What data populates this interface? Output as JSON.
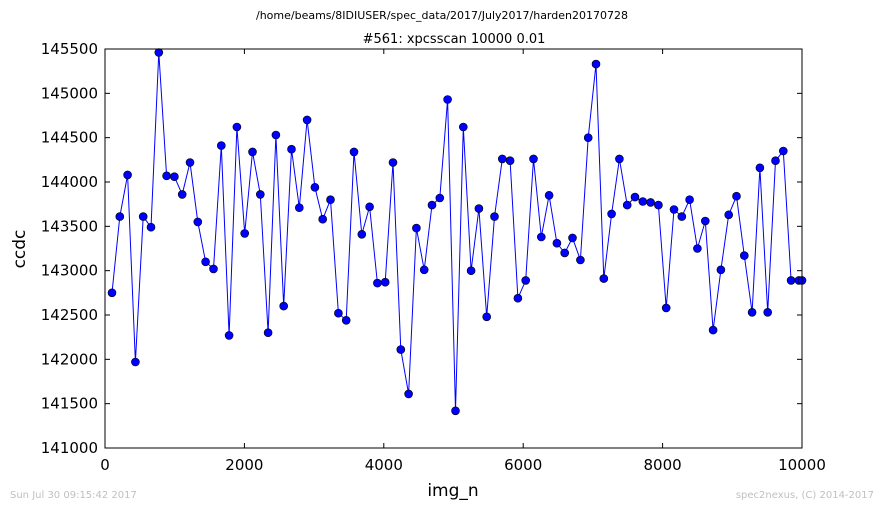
{
  "figure": {
    "suptitle": "/home/beams/8IDIUSER/spec_data/2017/July2017/harden20170728",
    "footer_left": "Sun Jul 30 09:15:42 2017",
    "footer_right": "spec2nexus, (C) 2014-2017"
  },
  "chart_data": {
    "type": "line",
    "title": "#561: xpcsscan 10000 0.01",
    "xlabel": "img_n",
    "ylabel": "ccdc",
    "xlim": [
      0,
      10000
    ],
    "ylim": [
      141000,
      145500
    ],
    "xticks": [
      0,
      2000,
      4000,
      6000,
      8000,
      10000
    ],
    "yticks": [
      141000,
      141500,
      142000,
      142500,
      143000,
      143500,
      144000,
      144500,
      145000,
      145500
    ],
    "grid": false,
    "line_color": "#0000ff",
    "marker": "circle",
    "series": [
      {
        "x": [
          100,
          212,
          324,
          436,
          548,
          660,
          772,
          884,
          996,
          1108,
          1220,
          1332,
          1444,
          1556,
          1668,
          1780,
          1892,
          2004,
          2116,
          2228,
          2340,
          2452,
          2564,
          2676,
          2788,
          2900,
          3012,
          3124,
          3236,
          3348,
          3460,
          3572,
          3684,
          3796,
          3908,
          4020,
          4132,
          4244,
          4356,
          4468,
          4580,
          4692,
          4804,
          4916,
          5028,
          5140,
          5252,
          5364,
          5476,
          5588,
          5700,
          5812,
          5924,
          6036,
          6148,
          6260,
          6372,
          6484,
          6596,
          6708,
          6820,
          6932,
          7044,
          7156,
          7268,
          7380,
          7492,
          7604,
          7716,
          7828,
          7940,
          8052,
          8164,
          8276,
          8388,
          8500,
          8612,
          8724,
          8836,
          8948,
          9060,
          9172,
          9284,
          9396,
          9508,
          9620,
          9732,
          9844,
          9956,
          10000
        ],
        "y": [
          142750,
          143610,
          144080,
          141970,
          143610,
          143490,
          145460,
          144070,
          144060,
          143860,
          144220,
          143550,
          143100,
          143020,
          144410,
          142270,
          144620,
          143420,
          144340,
          143860,
          142300,
          144530,
          142600,
          144370,
          143710,
          144700,
          143940,
          143580,
          143800,
          142520,
          142440,
          144340,
          143410,
          143720,
          142860,
          142870,
          144220,
          142110,
          141610,
          143480,
          143010,
          143740,
          143820,
          144930,
          141420,
          144620,
          143000,
          143700,
          142480,
          143610,
          144260,
          144240,
          142690,
          142890,
          144260,
          143380,
          143850,
          143310,
          143200,
          143370,
          143120,
          144500,
          145330,
          142910,
          143640,
          144260,
          143740,
          143830,
          143780,
          143770,
          143740,
          142580,
          143690,
          143610,
          143800,
          143250,
          143560,
          142330,
          143010,
          143630,
          143840,
          143170,
          142530,
          144160,
          142530,
          144240,
          144350,
          142890,
          142890,
          142890
        ]
      }
    ]
  }
}
